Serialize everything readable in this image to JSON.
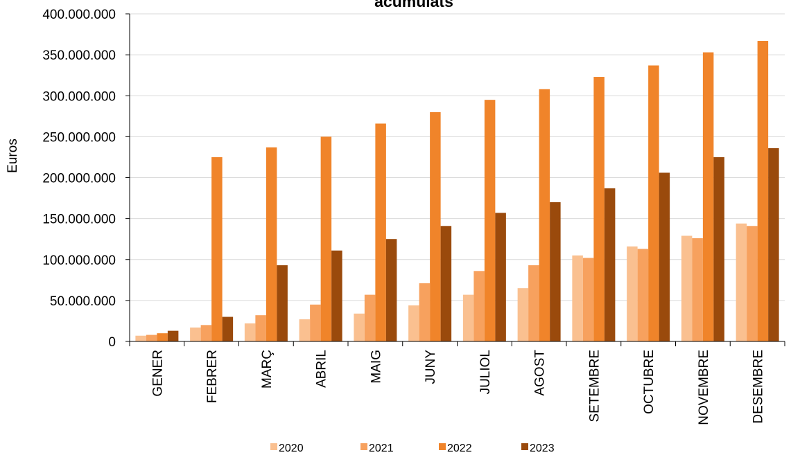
{
  "chart_data": {
    "type": "bar",
    "title": "acumulats",
    "ylabel": "Euros",
    "xlabel": "",
    "ylim": [
      0,
      400000000
    ],
    "yticks": [
      0,
      50000000,
      100000000,
      150000000,
      200000000,
      250000000,
      300000000,
      350000000,
      400000000
    ],
    "ytick_labels": [
      "0",
      "50.000.000",
      "100.000.000",
      "150.000.000",
      "200.000.000",
      "250.000.000",
      "300.000.000",
      "350.000.000",
      "400.000.000"
    ],
    "categories": [
      "GENER",
      "FEBRER",
      "MARÇ",
      "ABRIL",
      "MAIG",
      "JUNY",
      "JULIOL",
      "AGOST",
      "SETEMBRE",
      "OCTUBRE",
      "NOVEMBRE",
      "DESEMBRE"
    ],
    "series": [
      {
        "name": "2020",
        "color": "#fac090",
        "values": [
          7000000,
          17000000,
          22000000,
          27000000,
          34000000,
          44000000,
          57000000,
          65000000,
          105000000,
          116000000,
          129000000,
          144000000
        ]
      },
      {
        "name": "2021",
        "color": "#f7a15e",
        "values": [
          8000000,
          20000000,
          32000000,
          45000000,
          57000000,
          71000000,
          86000000,
          93000000,
          102000000,
          113000000,
          126000000,
          141000000
        ]
      },
      {
        "name": "2022",
        "color": "#f0842a",
        "values": [
          10000000,
          225000000,
          237000000,
          250000000,
          266000000,
          280000000,
          295000000,
          308000000,
          323000000,
          337000000,
          353000000,
          367000000
        ]
      },
      {
        "name": "2023",
        "color": "#9a4a0c",
        "values": [
          13000000,
          30000000,
          93000000,
          111000000,
          125000000,
          141000000,
          157000000,
          170000000,
          187000000,
          206000000,
          225000000,
          236000000
        ]
      }
    ],
    "grid": true,
    "legend": "bottom"
  }
}
